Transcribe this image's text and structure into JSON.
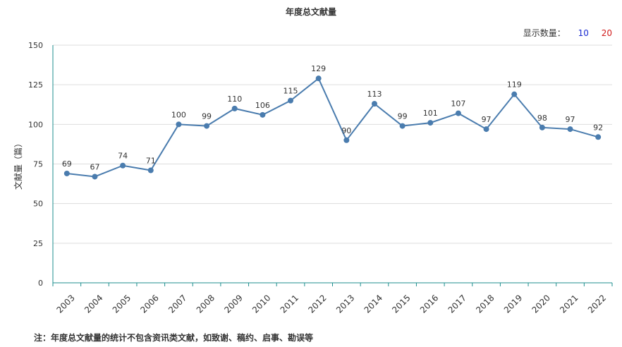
{
  "header": {
    "title": "年度总文献量",
    "display_count_label": "显示数量：",
    "display_count_options": [
      "10",
      "20"
    ]
  },
  "note": "注：年度总文献量的统计不包含资讯类文献，如致谢、稿约、启事、勘误等",
  "colors": {
    "line": "#4a7cae",
    "axis": "#1f8f8f",
    "grid": "#dddddd",
    "option_10": "#1a2bd1",
    "option_20": "#d11a1a"
  },
  "chart_data": {
    "type": "line",
    "title": "年度总文献量",
    "xlabel": "",
    "ylabel": "文献量（篇）",
    "ylim": [
      0,
      150
    ],
    "yticks": [
      0,
      25,
      50,
      75,
      100,
      125,
      150
    ],
    "grid": true,
    "categories": [
      "2003",
      "2004",
      "2005",
      "2006",
      "2007",
      "2008",
      "2009",
      "2010",
      "2011",
      "2012",
      "2013",
      "2014",
      "2015",
      "2016",
      "2017",
      "2018",
      "2019",
      "2020",
      "2021",
      "2022"
    ],
    "series": [
      {
        "values": [
          69,
          67,
          74,
          71,
          100,
          99,
          110,
          106,
          115,
          129,
          90,
          113,
          99,
          101,
          107,
          97,
          119,
          98,
          97,
          92
        ]
      }
    ]
  }
}
